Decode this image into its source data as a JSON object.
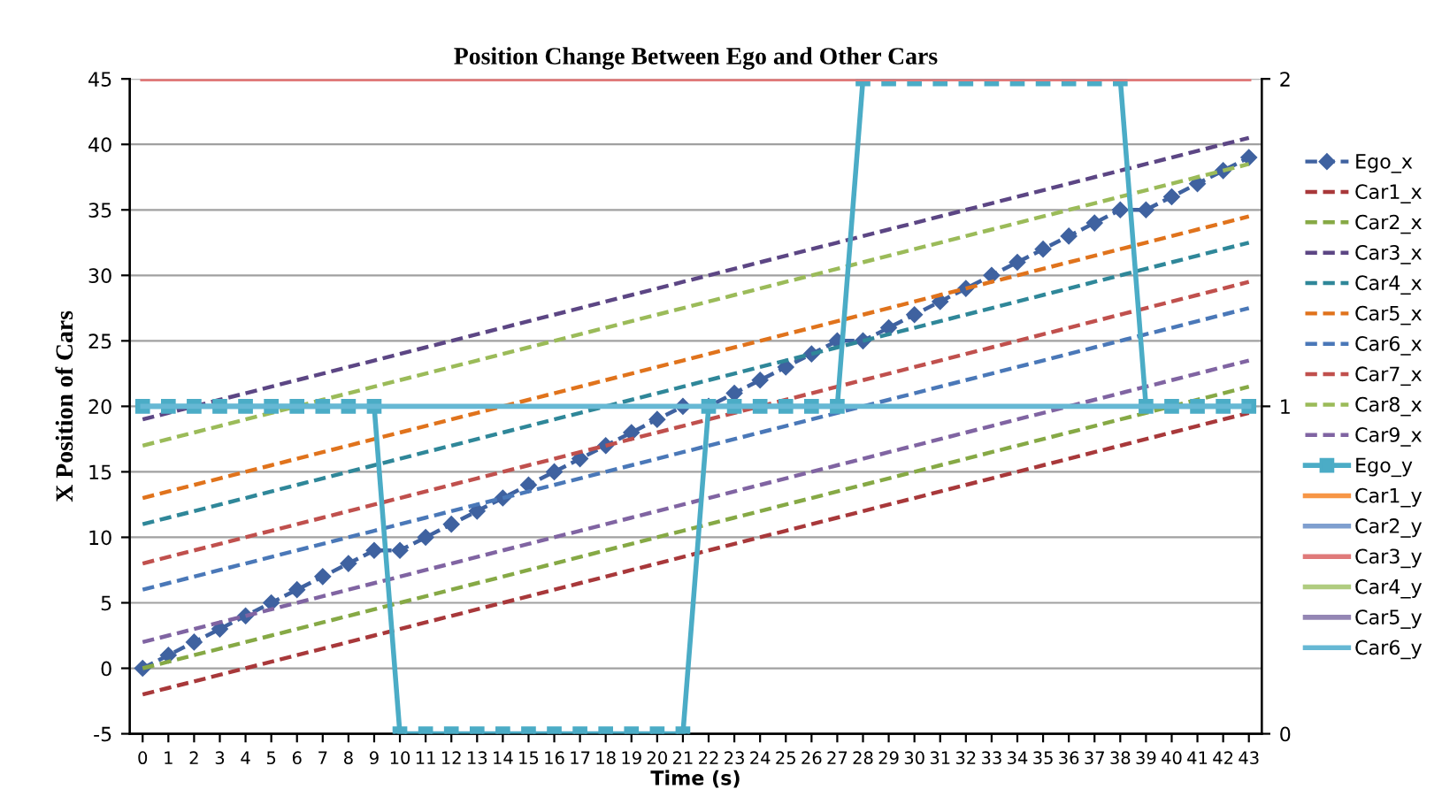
{
  "chart_data": {
    "type": "line",
    "title": "Position Change Between Ego and Other Cars",
    "xlabel": "Time (s)",
    "ylabel": "X Position of Cars",
    "categories": [
      "0",
      "1",
      "2",
      "3",
      "4",
      "5",
      "6",
      "7",
      "8",
      "9",
      "10",
      "11",
      "12",
      "13",
      "14",
      "15",
      "16",
      "17",
      "18",
      "19",
      "20",
      "21",
      "22",
      "23",
      "24",
      "25",
      "26",
      "27",
      "28",
      "29",
      "30",
      "31",
      "32",
      "33",
      "34",
      "35",
      "36",
      "37",
      "38",
      "39",
      "40",
      "41",
      "42",
      "43"
    ],
    "ylim": [
      -5,
      45
    ],
    "yticks": [
      -5,
      0,
      5,
      10,
      15,
      20,
      25,
      30,
      35,
      40,
      45
    ],
    "y2lim": [
      0,
      2
    ],
    "y2ticks": [
      0,
      1,
      2
    ],
    "grid": "y",
    "legend": "right",
    "series": [
      {
        "name": "Ego_x",
        "color": "#3f62a0",
        "marker": "diamond",
        "line_style": "dashed",
        "values": [
          0,
          1,
          2,
          3,
          4,
          5,
          6,
          7,
          8,
          9,
          9,
          10,
          11,
          12,
          13,
          14,
          15,
          16,
          17,
          18,
          19,
          20,
          20,
          21,
          22,
          23,
          24,
          25,
          25,
          26,
          27,
          28,
          29,
          30,
          31,
          32,
          33,
          34,
          35,
          35,
          36,
          37,
          38,
          39
        ]
      },
      {
        "name": "Car1_x",
        "color": "#a8383a",
        "line_style": "dashed",
        "values": [
          -2,
          -1.5,
          -1,
          -0.5,
          0,
          0.5,
          1,
          1.5,
          2,
          2.5,
          3,
          3.5,
          4,
          4.5,
          5,
          5.5,
          6,
          6.5,
          7,
          7.5,
          8,
          8.5,
          9,
          9.5,
          10,
          10.5,
          11,
          11.5,
          12,
          12.5,
          13,
          13.5,
          14,
          14.5,
          15,
          15.5,
          16,
          16.5,
          17,
          17.5,
          18,
          18.5,
          19,
          19.5
        ]
      },
      {
        "name": "Car2_x",
        "color": "#86a945",
        "line_style": "dashed",
        "values": [
          0,
          0.5,
          1,
          1.5,
          2,
          2.5,
          3,
          3.5,
          4,
          4.5,
          5,
          5.5,
          6,
          6.5,
          7,
          7.5,
          8,
          8.5,
          9,
          9.5,
          10,
          10.5,
          11,
          11.5,
          12,
          12.5,
          13,
          13.5,
          14,
          14.5,
          15,
          15.5,
          16,
          16.5,
          17,
          17.5,
          18,
          18.5,
          19,
          19.5,
          20,
          20.5,
          21,
          21.5
        ]
      },
      {
        "name": "Car3_x",
        "color": "#5c4684",
        "line_style": "dashed",
        "values": [
          19,
          19.5,
          20,
          20.5,
          21,
          21.5,
          22,
          22.5,
          23,
          23.5,
          24,
          24.5,
          25,
          25.5,
          26,
          26.5,
          27,
          27.5,
          28,
          28.5,
          29,
          29.5,
          30,
          30.5,
          31,
          31.5,
          32,
          32.5,
          33,
          33.5,
          34,
          34.5,
          35,
          35.5,
          36,
          36.5,
          37,
          37.5,
          38,
          38.5,
          39,
          39.5,
          40,
          40.5
        ]
      },
      {
        "name": "Car4_x",
        "color": "#2f8799",
        "line_style": "dashed",
        "values": [
          11,
          11.5,
          12,
          12.5,
          13,
          13.5,
          14,
          14.5,
          15,
          15.5,
          16,
          16.5,
          17,
          17.5,
          18,
          18.5,
          19,
          19.5,
          20,
          20.5,
          21,
          21.5,
          22,
          22.5,
          23,
          23.5,
          24,
          24.5,
          25,
          25.5,
          26,
          26.5,
          27,
          27.5,
          28,
          28.5,
          29,
          29.5,
          30,
          30.5,
          31,
          31.5,
          32,
          32.5
        ]
      },
      {
        "name": "Car5_x",
        "color": "#e0731c",
        "line_style": "dashed",
        "values": [
          13,
          13.5,
          14,
          14.5,
          15,
          15.5,
          16,
          16.5,
          17,
          17.5,
          18,
          18.5,
          19,
          19.5,
          20,
          20.5,
          21,
          21.5,
          22,
          22.5,
          23,
          23.5,
          24,
          24.5,
          25,
          25.5,
          26,
          26.5,
          27,
          27.5,
          28,
          28.5,
          29,
          29.5,
          30,
          30.5,
          31,
          31.5,
          32,
          32.5,
          33,
          33.5,
          34,
          34.5
        ]
      },
      {
        "name": "Car6_x",
        "color": "#4a78b8",
        "line_style": "dashed",
        "values": [
          6,
          6.5,
          7,
          7.5,
          8,
          8.5,
          9,
          9.5,
          10,
          10.5,
          11,
          11.5,
          12,
          12.5,
          13,
          13.5,
          14,
          14.5,
          15,
          15.5,
          16,
          16.5,
          17,
          17.5,
          18,
          18.5,
          19,
          19.5,
          20,
          20.5,
          21,
          21.5,
          22,
          22.5,
          23,
          23.5,
          24,
          24.5,
          25,
          25.5,
          26,
          26.5,
          27,
          27.5
        ]
      },
      {
        "name": "Car7_x",
        "color": "#c0504d",
        "line_style": "dashed",
        "values": [
          8,
          8.5,
          9,
          9.5,
          10,
          10.5,
          11,
          11.5,
          12,
          12.5,
          13,
          13.5,
          14,
          14.5,
          15,
          15.5,
          16,
          16.5,
          17,
          17.5,
          18,
          18.5,
          19,
          19.5,
          20,
          20.5,
          21,
          21.5,
          22,
          22.5,
          23,
          23.5,
          24,
          24.5,
          25,
          25.5,
          26,
          26.5,
          27,
          27.5,
          28,
          28.5,
          29,
          29.5
        ]
      },
      {
        "name": "Car8_x",
        "color": "#9bbb59",
        "line_style": "dashed",
        "values": [
          17,
          17.5,
          18,
          18.5,
          19,
          19.5,
          20,
          20.5,
          21,
          21.5,
          22,
          22.5,
          23,
          23.5,
          24,
          24.5,
          25,
          25.5,
          26,
          26.5,
          27,
          27.5,
          28,
          28.5,
          29,
          29.5,
          30,
          30.5,
          31,
          31.5,
          32,
          32.5,
          33,
          33.5,
          34,
          34.5,
          35,
          35.5,
          36,
          36.5,
          37,
          37.5,
          38,
          38.5
        ]
      },
      {
        "name": "Car9_x",
        "color": "#8064a2",
        "line_style": "dashed",
        "values": [
          2,
          2.5,
          3,
          3.5,
          4,
          4.5,
          5,
          5.5,
          6,
          6.5,
          7,
          7.5,
          8,
          8.5,
          9,
          9.5,
          10,
          10.5,
          11,
          11.5,
          12,
          12.5,
          13,
          13.5,
          14,
          14.5,
          15,
          15.5,
          16,
          16.5,
          17,
          17.5,
          18,
          18.5,
          19,
          19.5,
          20,
          20.5,
          21,
          21.5,
          22,
          22.5,
          23,
          23.5
        ]
      },
      {
        "name": "Ego_y",
        "color": "#4bacc6",
        "marker": "square",
        "line_style": "solid",
        "axis": "y2",
        "values": [
          1,
          1,
          1,
          1,
          1,
          1,
          1,
          1,
          1,
          1,
          0,
          0,
          0,
          0,
          0,
          0,
          0,
          0,
          0,
          0,
          0,
          0,
          1,
          1,
          1,
          1,
          1,
          1,
          2,
          2,
          2,
          2,
          2,
          2,
          2,
          2,
          2,
          2,
          2,
          1,
          1,
          1,
          1,
          1
        ]
      },
      {
        "name": "Car1_y",
        "color": "#f79646",
        "line_style": "solid",
        "axis": "y2",
        "values": [
          null,
          null,
          null,
          null,
          null,
          null,
          null,
          null,
          null,
          null,
          null,
          null,
          null,
          null,
          null,
          null,
          null,
          null,
          null,
          null,
          null,
          null,
          null,
          null,
          null,
          null,
          null,
          null,
          null,
          null,
          null,
          null,
          null,
          null,
          null,
          null,
          null,
          null,
          null,
          null,
          null,
          null,
          null,
          null
        ]
      },
      {
        "name": "Car2_y",
        "color": "#7f9fcf",
        "line_style": "solid",
        "axis": "y2",
        "values": [
          null,
          null,
          null,
          null,
          null,
          null,
          null,
          null,
          null,
          null,
          null,
          null,
          null,
          null,
          null,
          null,
          null,
          null,
          null,
          null,
          null,
          null,
          null,
          null,
          null,
          null,
          null,
          null,
          null,
          null,
          null,
          null,
          null,
          null,
          null,
          null,
          null,
          null,
          null,
          null,
          null,
          null,
          null,
          null
        ]
      },
      {
        "name": "Car3_y",
        "color": "#e07a7a",
        "line_style": "solid",
        "axis": "y2",
        "values": [
          2,
          2,
          2,
          2,
          2,
          2,
          2,
          2,
          2,
          2,
          2,
          2,
          2,
          2,
          2,
          2,
          2,
          2,
          2,
          2,
          2,
          2,
          2,
          2,
          2,
          2,
          2,
          2,
          2,
          2,
          2,
          2,
          2,
          2,
          2,
          2,
          2,
          2,
          2,
          2,
          2,
          2,
          2,
          2
        ]
      },
      {
        "name": "Car4_y",
        "color": "#b0cc80",
        "line_style": "solid",
        "axis": "y2",
        "values": [
          null,
          null,
          null,
          null,
          null,
          null,
          null,
          null,
          null,
          null,
          null,
          null,
          null,
          null,
          null,
          null,
          null,
          null,
          null,
          null,
          null,
          null,
          null,
          null,
          null,
          null,
          null,
          null,
          null,
          null,
          null,
          null,
          null,
          null,
          null,
          null,
          null,
          null,
          null,
          null,
          null,
          null,
          null,
          null
        ]
      },
      {
        "name": "Car5_y",
        "color": "#9486b4",
        "line_style": "solid",
        "axis": "y2",
        "values": [
          null,
          null,
          null,
          null,
          null,
          null,
          null,
          null,
          null,
          null,
          null,
          null,
          null,
          null,
          null,
          null,
          null,
          null,
          null,
          null,
          null,
          null,
          null,
          null,
          null,
          null,
          null,
          null,
          null,
          null,
          null,
          null,
          null,
          null,
          null,
          null,
          null,
          null,
          null,
          null,
          null,
          null,
          null,
          null
        ]
      },
      {
        "name": "Car6_y",
        "color": "#66b8d4",
        "line_style": "solid",
        "axis": "y2",
        "values": [
          1,
          1,
          1,
          1,
          1,
          1,
          1,
          1,
          1,
          1,
          1,
          1,
          1,
          1,
          1,
          1,
          1,
          1,
          1,
          1,
          1,
          1,
          1,
          1,
          1,
          1,
          1,
          1,
          1,
          1,
          1,
          1,
          1,
          1,
          1,
          1,
          1,
          1,
          1,
          1,
          1,
          1,
          1,
          1
        ]
      }
    ]
  }
}
